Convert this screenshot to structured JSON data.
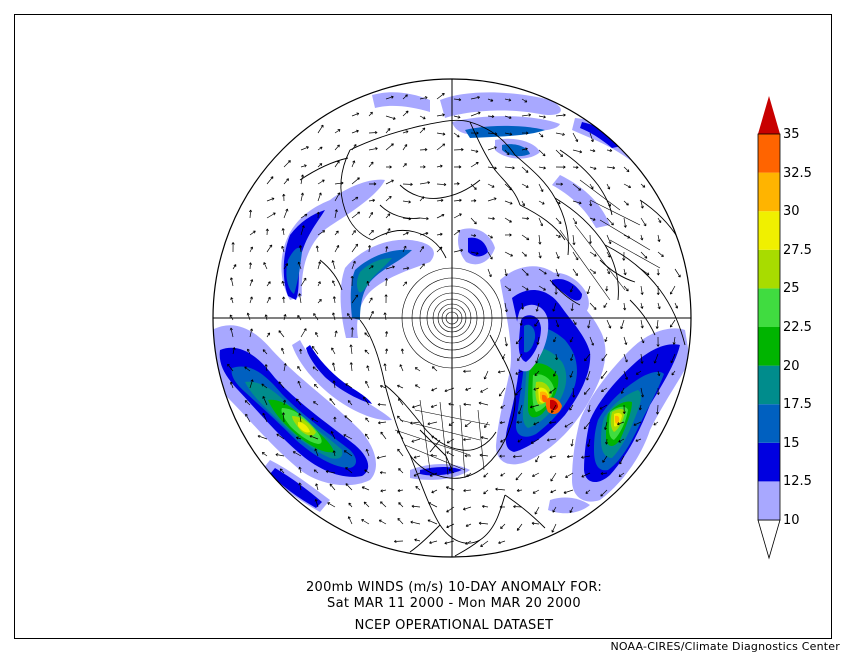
{
  "caption": {
    "line1": "200mb WINDS (m/s)   10-DAY ANOMALY FOR:",
    "line2": "Sat MAR 11 2000 - Mon MAR 20 2000",
    "line3": "NCEP OPERATIONAL DATASET"
  },
  "credit": "NOAA-CIRES/Climate Diagnostics Center",
  "colorbar": {
    "levels": [
      "10",
      "12.5",
      "15",
      "17.5",
      "20",
      "22.5",
      "25",
      "27.5",
      "30",
      "32.5",
      "35"
    ],
    "colors": [
      "#ffffff",
      "#a8a8ff",
      "#0000e0",
      "#0060c0",
      "#008c8c",
      "#00b400",
      "#40dc40",
      "#a8dc00",
      "#f0f000",
      "#ffb400",
      "#ff6400",
      "#c80000"
    ]
  },
  "map": {
    "projection": "north polar stereographic",
    "contours": true,
    "wind_vectors": true
  }
}
